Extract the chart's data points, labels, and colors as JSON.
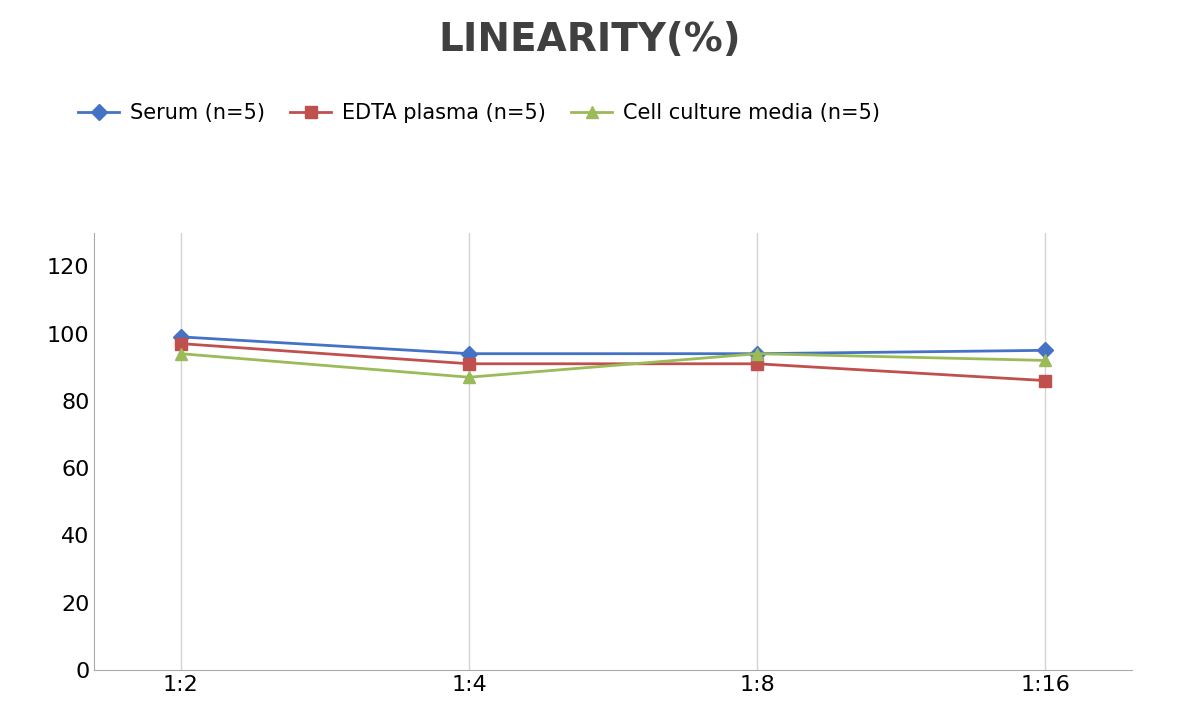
{
  "title": "LINEARITY(%)",
  "x_labels": [
    "1:2",
    "1:4",
    "1:8",
    "1:16"
  ],
  "x_positions": [
    0,
    1,
    2,
    3
  ],
  "series": [
    {
      "label": "Serum (n=5)",
      "values": [
        99,
        94,
        94,
        95
      ],
      "color": "#4472C4",
      "marker": "D",
      "linewidth": 2,
      "markersize": 8
    },
    {
      "label": "EDTA plasma (n=5)",
      "values": [
        97,
        91,
        91,
        86
      ],
      "color": "#C0504D",
      "marker": "s",
      "linewidth": 2,
      "markersize": 8
    },
    {
      "label": "Cell culture media (n=5)",
      "values": [
        94,
        87,
        94,
        92
      ],
      "color": "#9BBB59",
      "marker": "^",
      "linewidth": 2,
      "markersize": 8
    }
  ],
  "ylim": [
    0,
    130
  ],
  "yticks": [
    0,
    20,
    40,
    60,
    80,
    100,
    120
  ],
  "background_color": "#ffffff",
  "grid_color": "#d3d3d3",
  "title_fontsize": 28,
  "title_color": "#404040",
  "tick_fontsize": 16,
  "legend_fontsize": 15
}
